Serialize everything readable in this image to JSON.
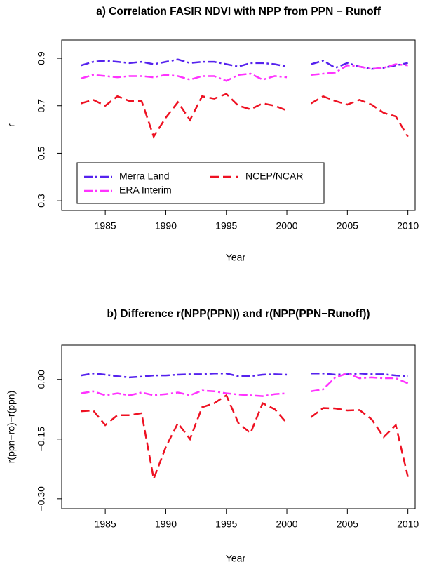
{
  "chart_data": [
    {
      "type": "line",
      "title": "a) Correlation FASIR NDVI with NPP from PPN − Runoff",
      "xlabel": "Year",
      "ylabel": "r",
      "x": [
        1983,
        1984,
        1985,
        1986,
        1987,
        1988,
        1989,
        1990,
        1991,
        1992,
        1993,
        1994,
        1995,
        1996,
        1997,
        1998,
        1999,
        2000,
        2001,
        2002,
        2003,
        2004,
        2005,
        2006,
        2007,
        2008,
        2009,
        2010
      ],
      "xlim": [
        1981.4,
        2010.6
      ],
      "xticks": [
        1985,
        1990,
        1995,
        2000,
        2005,
        2010
      ],
      "ylim": [
        0.259,
        0.977
      ],
      "yticks": [
        0.3,
        0.5,
        0.7,
        0.9
      ],
      "legend": "bottomleft",
      "series": [
        {
          "name": "Merra Land",
          "color": "#5522ee",
          "dash": "dashdot",
          "values": [
            0.87,
            0.885,
            0.89,
            0.885,
            0.88,
            0.885,
            0.875,
            0.885,
            0.895,
            0.88,
            0.885,
            0.885,
            0.875,
            0.865,
            0.88,
            0.88,
            0.875,
            0.865,
            null,
            0.875,
            0.89,
            0.86,
            0.88,
            0.865,
            0.855,
            0.86,
            0.87,
            0.88
          ]
        },
        {
          "name": "ERA Interim",
          "color": "#ff33ff",
          "dash": "dashdot",
          "values": [
            0.815,
            0.83,
            0.825,
            0.82,
            0.825,
            0.825,
            0.82,
            0.83,
            0.825,
            0.81,
            0.825,
            0.825,
            0.805,
            0.83,
            0.835,
            0.81,
            0.825,
            0.82,
            null,
            0.83,
            0.835,
            0.84,
            0.87,
            0.865,
            0.855,
            0.86,
            0.875,
            0.87
          ]
        },
        {
          "name": "NCEP/NCAR",
          "color": "#ee1122",
          "dash": "dashed",
          "values": [
            0.71,
            0.725,
            0.7,
            0.74,
            0.72,
            0.72,
            0.57,
            0.65,
            0.715,
            0.64,
            0.74,
            0.73,
            0.75,
            0.7,
            0.685,
            0.71,
            0.7,
            0.68,
            null,
            0.71,
            0.74,
            0.72,
            0.705,
            0.725,
            0.705,
            0.67,
            0.655,
            0.57
          ]
        }
      ]
    },
    {
      "type": "line",
      "title": "b) Difference r(NPP(PPN)) and r(NPP(PPN−Runoff))",
      "xlabel": "Year",
      "ylabel": "r(ppn−ro)−r(ppn)",
      "x": [
        1983,
        1984,
        1985,
        1986,
        1987,
        1988,
        1989,
        1990,
        1991,
        1992,
        1993,
        1994,
        1995,
        1996,
        1997,
        1998,
        1999,
        2000,
        2001,
        2002,
        2003,
        2004,
        2005,
        2006,
        2007,
        2008,
        2009,
        2010
      ],
      "xlim": [
        1981.4,
        2010.6
      ],
      "xticks": [
        1985,
        1990,
        1995,
        2000,
        2005,
        2010
      ],
      "ylim": [
        -0.325,
        0.086
      ],
      "yticks": [
        {
          "value": -0.3,
          "label": "−0.30"
        },
        {
          "value": -0.15,
          "label": "−0.15"
        },
        {
          "value": 0,
          "label": "0.00"
        }
      ],
      "series": [
        {
          "color": "#5522ee",
          "dash": "dashdot",
          "values": [
            0.01,
            0.015,
            0.012,
            0.008,
            0.005,
            0.007,
            0.01,
            0.01,
            0.012,
            0.013,
            0.013,
            0.015,
            0.015,
            0.008,
            0.008,
            0.012,
            0.013,
            0.012,
            null,
            0.015,
            0.015,
            0.012,
            0.013,
            0.015,
            0.013,
            0.013,
            0.01,
            0.008
          ]
        },
        {
          "color": "#ff33ff",
          "dash": "dashdot",
          "values": [
            -0.035,
            -0.03,
            -0.04,
            -0.035,
            -0.04,
            -0.033,
            -0.04,
            -0.037,
            -0.033,
            -0.04,
            -0.028,
            -0.03,
            -0.035,
            -0.038,
            -0.04,
            -0.042,
            -0.037,
            -0.035,
            null,
            -0.03,
            -0.025,
            0.005,
            0.015,
            0.003,
            0.005,
            0.003,
            0.003,
            -0.01
          ]
        },
        {
          "color": "#ee1122",
          "dash": "dashed",
          "values": [
            -0.08,
            -0.078,
            -0.115,
            -0.09,
            -0.09,
            -0.085,
            -0.25,
            -0.17,
            -0.11,
            -0.15,
            -0.07,
            -0.06,
            -0.04,
            -0.11,
            -0.135,
            -0.06,
            -0.075,
            -0.11,
            null,
            -0.095,
            -0.072,
            -0.073,
            -0.078,
            -0.077,
            -0.1,
            -0.145,
            -0.115,
            -0.245
          ]
        }
      ]
    }
  ]
}
